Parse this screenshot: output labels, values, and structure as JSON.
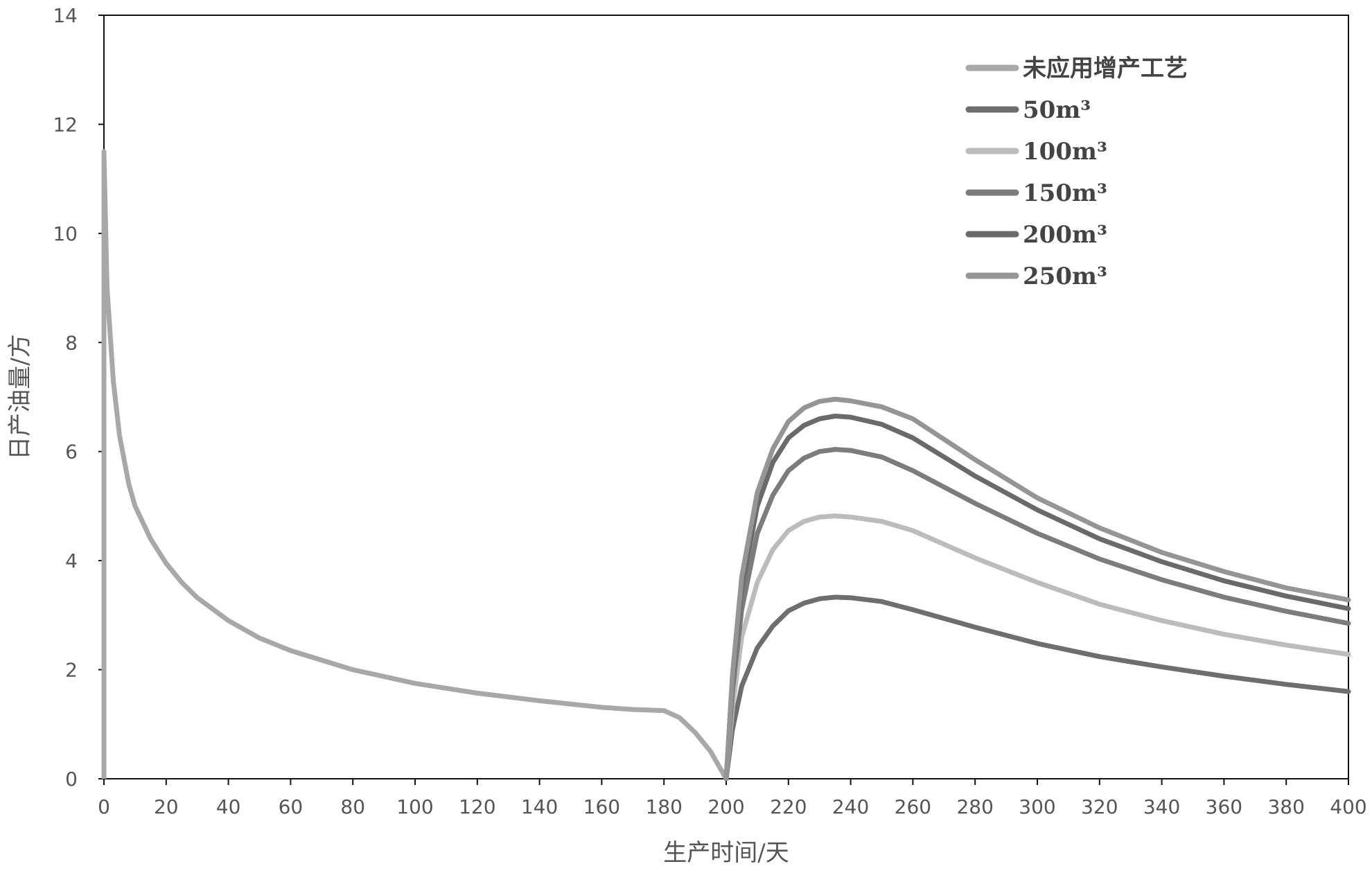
{
  "chart_data": {
    "type": "line",
    "title": "",
    "xlabel": "生产时间/天",
    "ylabel": "日产油量/方",
    "xlim": [
      0,
      400
    ],
    "ylim": [
      0,
      14
    ],
    "xticks": [
      0,
      20,
      40,
      60,
      80,
      100,
      120,
      140,
      160,
      180,
      200,
      220,
      240,
      260,
      280,
      300,
      320,
      340,
      360,
      380,
      400
    ],
    "yticks": [
      0,
      2,
      4,
      6,
      8,
      10,
      12,
      14
    ],
    "grid": false,
    "legend_position": "top-right",
    "series": [
      {
        "name": "未应用增产工艺",
        "color": "#a8a8a8",
        "x": [
          0,
          1,
          3,
          5,
          8,
          10,
          15,
          20,
          25,
          30,
          40,
          50,
          60,
          80,
          100,
          120,
          140,
          160,
          170,
          180,
          185,
          190,
          195,
          198,
          200
        ],
        "y": [
          11.5,
          9.0,
          7.3,
          6.3,
          5.4,
          5.0,
          4.4,
          3.95,
          3.6,
          3.32,
          2.9,
          2.58,
          2.35,
          2.0,
          1.75,
          1.57,
          1.43,
          1.31,
          1.27,
          1.25,
          1.12,
          0.85,
          0.5,
          0.2,
          0
        ]
      },
      {
        "name": "50m³",
        "color": "#6e6e6e",
        "x": [
          200,
          202,
          205,
          210,
          215,
          220,
          225,
          230,
          235,
          240,
          250,
          260,
          280,
          300,
          320,
          340,
          360,
          380,
          400
        ],
        "y": [
          0,
          0.9,
          1.7,
          2.4,
          2.8,
          3.08,
          3.22,
          3.3,
          3.33,
          3.32,
          3.25,
          3.1,
          2.78,
          2.48,
          2.24,
          2.05,
          1.88,
          1.73,
          1.6
        ]
      },
      {
        "name": "100m³",
        "color": "#bcbcbc",
        "x": [
          200,
          202,
          205,
          210,
          215,
          220,
          225,
          230,
          235,
          240,
          250,
          260,
          280,
          300,
          320,
          340,
          360,
          380,
          400
        ],
        "y": [
          0,
          1.3,
          2.6,
          3.6,
          4.2,
          4.55,
          4.72,
          4.8,
          4.82,
          4.8,
          4.72,
          4.55,
          4.05,
          3.6,
          3.2,
          2.9,
          2.65,
          2.45,
          2.28
        ]
      },
      {
        "name": "150m³",
        "color": "#7c7c7c",
        "x": [
          200,
          202,
          205,
          210,
          215,
          220,
          225,
          230,
          235,
          240,
          250,
          260,
          280,
          300,
          320,
          340,
          360,
          380,
          400
        ],
        "y": [
          0,
          1.6,
          3.1,
          4.5,
          5.2,
          5.65,
          5.88,
          6.0,
          6.04,
          6.02,
          5.9,
          5.65,
          5.05,
          4.5,
          4.03,
          3.65,
          3.33,
          3.07,
          2.85
        ]
      },
      {
        "name": "200m³",
        "color": "#6a6a6a",
        "x": [
          200,
          202,
          205,
          210,
          215,
          220,
          225,
          230,
          235,
          240,
          250,
          260,
          280,
          300,
          320,
          340,
          360,
          380,
          400
        ],
        "y": [
          0,
          1.8,
          3.5,
          5.0,
          5.8,
          6.25,
          6.48,
          6.6,
          6.65,
          6.63,
          6.5,
          6.25,
          5.55,
          4.93,
          4.4,
          3.98,
          3.63,
          3.35,
          3.12
        ]
      },
      {
        "name": "250m³",
        "color": "#959595",
        "x": [
          200,
          202,
          205,
          210,
          215,
          220,
          225,
          230,
          235,
          240,
          250,
          260,
          280,
          300,
          320,
          340,
          360,
          380,
          400
        ],
        "y": [
          0,
          1.9,
          3.7,
          5.25,
          6.05,
          6.55,
          6.8,
          6.92,
          6.96,
          6.93,
          6.82,
          6.6,
          5.85,
          5.15,
          4.6,
          4.15,
          3.8,
          3.5,
          3.28
        ]
      }
    ]
  }
}
